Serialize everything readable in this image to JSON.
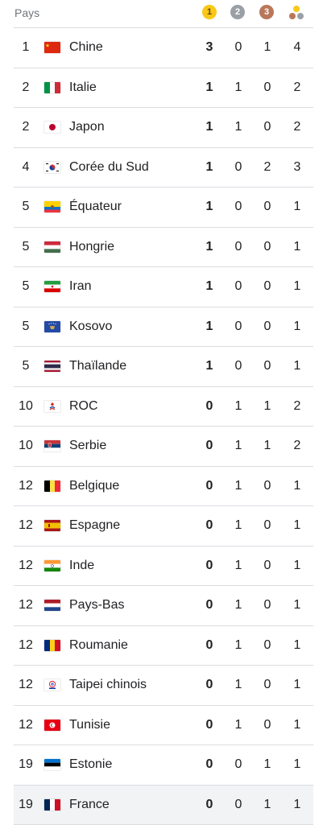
{
  "header": {
    "country_label": "Pays",
    "gold_head": "1",
    "silver_head": "2",
    "bronze_head": "3"
  },
  "colors": {
    "gold": "#f9c818",
    "silver": "#9aa0a6",
    "bronze": "#b9775a",
    "divider": "#dadce0"
  },
  "rows": [
    {
      "rank": "1",
      "country": "Chine",
      "flag": "china-flag-icon",
      "gold": "3",
      "silver": "0",
      "bronze": "1",
      "total": "4"
    },
    {
      "rank": "2",
      "country": "Italie",
      "flag": "italy-flag-icon",
      "gold": "1",
      "silver": "1",
      "bronze": "0",
      "total": "2"
    },
    {
      "rank": "2",
      "country": "Japon",
      "flag": "japan-flag-icon",
      "gold": "1",
      "silver": "1",
      "bronze": "0",
      "total": "2"
    },
    {
      "rank": "4",
      "country": "Corée du Sud",
      "flag": "south-korea-flag-icon",
      "gold": "1",
      "silver": "0",
      "bronze": "2",
      "total": "3"
    },
    {
      "rank": "5",
      "country": "Équateur",
      "flag": "ecuador-flag-icon",
      "gold": "1",
      "silver": "0",
      "bronze": "0",
      "total": "1"
    },
    {
      "rank": "5",
      "country": "Hongrie",
      "flag": "hungary-flag-icon",
      "gold": "1",
      "silver": "0",
      "bronze": "0",
      "total": "1"
    },
    {
      "rank": "5",
      "country": "Iran",
      "flag": "iran-flag-icon",
      "gold": "1",
      "silver": "0",
      "bronze": "0",
      "total": "1"
    },
    {
      "rank": "5",
      "country": "Kosovo",
      "flag": "kosovo-flag-icon",
      "gold": "1",
      "silver": "0",
      "bronze": "0",
      "total": "1"
    },
    {
      "rank": "5",
      "country": "Thaïlande",
      "flag": "thailand-flag-icon",
      "gold": "1",
      "silver": "0",
      "bronze": "0",
      "total": "1"
    },
    {
      "rank": "10",
      "country": "ROC",
      "flag": "roc-flag-icon",
      "gold": "0",
      "silver": "1",
      "bronze": "1",
      "total": "2"
    },
    {
      "rank": "10",
      "country": "Serbie",
      "flag": "serbia-flag-icon",
      "gold": "0",
      "silver": "1",
      "bronze": "1",
      "total": "2"
    },
    {
      "rank": "12",
      "country": "Belgique",
      "flag": "belgium-flag-icon",
      "gold": "0",
      "silver": "1",
      "bronze": "0",
      "total": "1"
    },
    {
      "rank": "12",
      "country": "Espagne",
      "flag": "spain-flag-icon",
      "gold": "0",
      "silver": "1",
      "bronze": "0",
      "total": "1"
    },
    {
      "rank": "12",
      "country": "Inde",
      "flag": "india-flag-icon",
      "gold": "0",
      "silver": "1",
      "bronze": "0",
      "total": "1"
    },
    {
      "rank": "12",
      "country": "Pays-Bas",
      "flag": "netherlands-flag-icon",
      "gold": "0",
      "silver": "1",
      "bronze": "0",
      "total": "1"
    },
    {
      "rank": "12",
      "country": "Roumanie",
      "flag": "romania-flag-icon",
      "gold": "0",
      "silver": "1",
      "bronze": "0",
      "total": "1"
    },
    {
      "rank": "12",
      "country": "Taipei chinois",
      "flag": "chinese-taipei-flag-icon",
      "gold": "0",
      "silver": "1",
      "bronze": "0",
      "total": "1"
    },
    {
      "rank": "12",
      "country": "Tunisie",
      "flag": "tunisia-flag-icon",
      "gold": "0",
      "silver": "1",
      "bronze": "0",
      "total": "1"
    },
    {
      "rank": "19",
      "country": "Estonie",
      "flag": "estonia-flag-icon",
      "gold": "0",
      "silver": "0",
      "bronze": "1",
      "total": "1"
    },
    {
      "rank": "19",
      "country": "France",
      "flag": "france-flag-icon",
      "gold": "0",
      "silver": "0",
      "bronze": "1",
      "total": "1"
    }
  ]
}
